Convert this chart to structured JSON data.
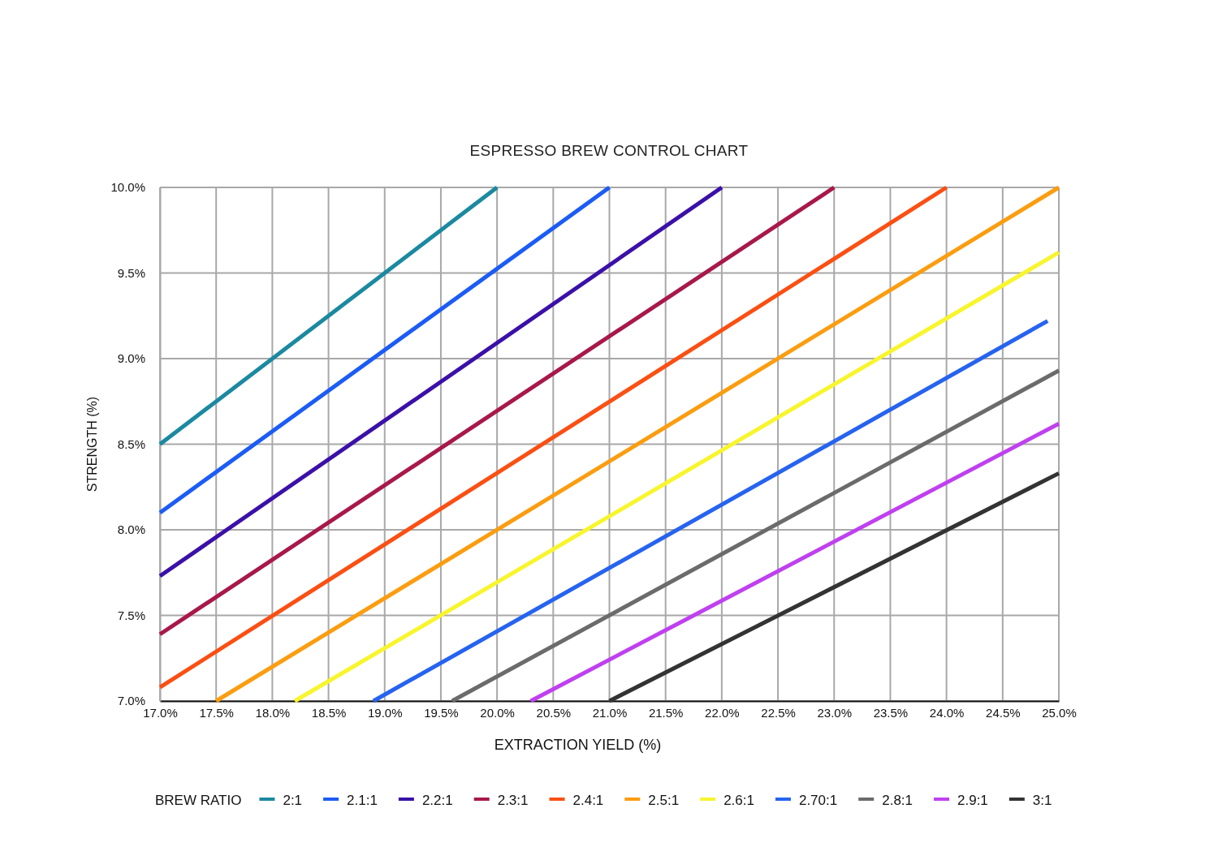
{
  "chart_data": {
    "type": "line",
    "title": "ESPRESSO BREW CONTROL CHART",
    "xlabel": "EXTRACTION YIELD (%)",
    "ylabel": "STRENGTH (%)",
    "legend_title": "BREW RATIO",
    "xlim": [
      17,
      25
    ],
    "ylim": [
      7,
      10
    ],
    "xticks": [
      {
        "value": 17,
        "label": "17.0%"
      },
      {
        "value": 17.5,
        "label": "17.5%"
      },
      {
        "value": 18,
        "label": "18.0%"
      },
      {
        "value": 18.5,
        "label": "18.5%"
      },
      {
        "value": 19,
        "label": "19.0%"
      },
      {
        "value": 19.5,
        "label": "19.5%"
      },
      {
        "value": 20,
        "label": "20.0%"
      },
      {
        "value": 20.5,
        "label": "20.5%"
      },
      {
        "value": 21,
        "label": "21.0%"
      },
      {
        "value": 21.5,
        "label": "21.5%"
      },
      {
        "value": 22,
        "label": "22.0%"
      },
      {
        "value": 22.5,
        "label": "22.5%"
      },
      {
        "value": 23,
        "label": "23.0%"
      },
      {
        "value": 23.5,
        "label": "23.5%"
      },
      {
        "value": 24,
        "label": "24.0%"
      },
      {
        "value": 24.5,
        "label": "24.5%"
      },
      {
        "value": 25,
        "label": "25.0%"
      }
    ],
    "yticks": [
      {
        "value": 7,
        "label": "7.0%"
      },
      {
        "value": 7.5,
        "label": "7.5%"
      },
      {
        "value": 8,
        "label": "8.0%"
      },
      {
        "value": 8.5,
        "label": "8.5%"
      },
      {
        "value": 9,
        "label": "9.0%"
      },
      {
        "value": 9.5,
        "label": "9.5%"
      },
      {
        "value": 10,
        "label": "10.0%"
      }
    ],
    "grid": true,
    "legend": "bottom",
    "marker": "none",
    "line_style": "solid",
    "series": [
      {
        "name": "2:1",
        "color": "#1b89a0",
        "x": [
          17,
          20
        ],
        "values": [
          8.5,
          10
        ]
      },
      {
        "name": "2.1:1",
        "color": "#1c5cf5",
        "x": [
          17,
          21
        ],
        "values": [
          8.1,
          10
        ]
      },
      {
        "name": "2.2:1",
        "color": "#3b10a8",
        "x": [
          17,
          22
        ],
        "values": [
          7.73,
          10
        ]
      },
      {
        "name": "2.3:1",
        "color": "#a8184a",
        "x": [
          17,
          23
        ],
        "values": [
          7.39,
          10
        ]
      },
      {
        "name": "2.4:1",
        "color": "#fb4f13",
        "x": [
          17,
          24
        ],
        "values": [
          7.08,
          10
        ]
      },
      {
        "name": "2.5:1",
        "color": "#fb9d10",
        "x": [
          17.5,
          25
        ],
        "values": [
          7,
          10
        ]
      },
      {
        "name": "2.6:1",
        "color": "#f8f52c",
        "x": [
          18.2,
          25
        ],
        "values": [
          7,
          9.62
        ]
      },
      {
        "name": "2.70:1",
        "color": "#2663f0",
        "x": [
          18.9,
          24.9
        ],
        "values": [
          7,
          9.22
        ]
      },
      {
        "name": "2.8:1",
        "color": "#6b6b6b",
        "x": [
          19.6,
          25
        ],
        "values": [
          7,
          8.93
        ]
      },
      {
        "name": "2.9:1",
        "color": "#bf40f0",
        "x": [
          20.3,
          25
        ],
        "values": [
          7,
          8.62
        ]
      },
      {
        "name": "3:1",
        "color": "#333333",
        "x": [
          21,
          25
        ],
        "values": [
          7,
          8.33
        ]
      }
    ]
  }
}
